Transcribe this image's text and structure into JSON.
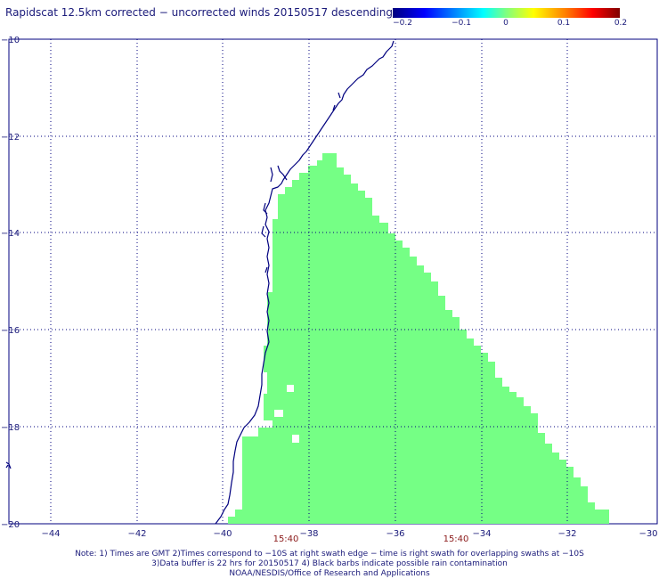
{
  "title": "Rapidscat 12.5km corrected − uncorrected winds 20150517 descending",
  "colorbar": {
    "ticks": [
      "−0.2",
      "−0.1",
      "0",
      "0.1",
      "0.2"
    ],
    "min": -0.2,
    "max": 0.2
  },
  "map": {
    "lon_labels": [
      "−44",
      "−42",
      "−40",
      "−38",
      "−36",
      "−34",
      "−32",
      "−30"
    ],
    "lat_labels": [
      "−10",
      "−12",
      "−14",
      "−16",
      "−18",
      "−20"
    ],
    "time_labels": [
      "15:40",
      "15:40"
    ],
    "lon_range": [
      -45,
      -30
    ],
    "lat_range": [
      -20,
      -10
    ],
    "grid": "dotted",
    "swath_color": "#75ff85",
    "coast_color": "#00007f"
  },
  "notes": [
    "Note: 1) Times are GMT 2)Times correspond to −10S at right swath edge − time is right swath for overlapping swaths at −10S",
    "3)Data buffer is 22 hrs for 20150517 4) Black barbs indicate possible rain contamination",
    "NOAA/NESDIS/Office of Research and Applications"
  ]
}
